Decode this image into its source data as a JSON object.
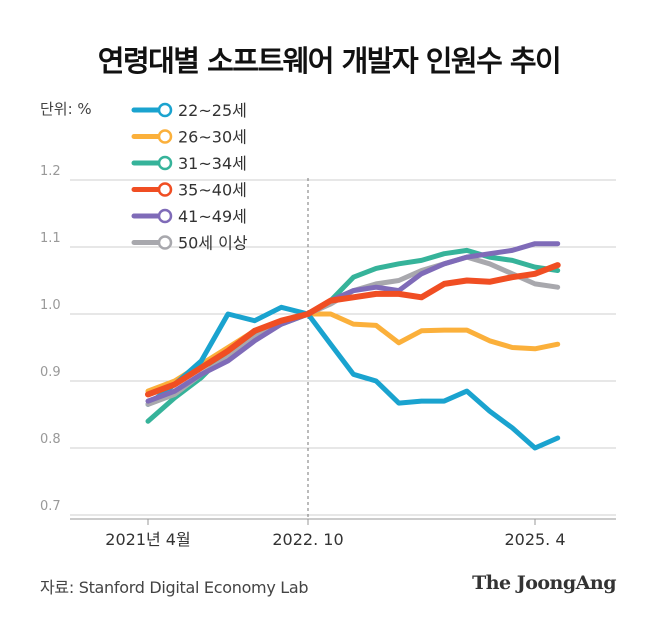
{
  "title": "연령대별 소프트웨어 개발자 인원수 추이",
  "unit_label": "단위: %",
  "source": "자료: Stanford Digital Economy Lab",
  "logo": "The JoongAng",
  "chart_data": {
    "type": "line",
    "title": "연령대별 소프트웨어 개발자 인원수 추이",
    "ylim": [
      0.7,
      1.2
    ],
    "yticks": [
      "0.7",
      "0.8",
      "0.9",
      "1.0",
      "1.1",
      "1.2"
    ],
    "xticks": [
      {
        "date": "2021-04",
        "label": "2021년 4월"
      },
      {
        "date": "2022-10",
        "label": "2022. 10"
      },
      {
        "date": "2025-04",
        "label": "2025. 4"
      }
    ],
    "reference_line": "2022-10",
    "grid": true,
    "legend_position": "top-left",
    "x": [
      "2021-04",
      "2021-07",
      "2021-10",
      "2022-01",
      "2022-04",
      "2022-07",
      "2022-10",
      "2023-01",
      "2023-04",
      "2023-07",
      "2023-10",
      "2024-01",
      "2024-04",
      "2024-07",
      "2024-10",
      "2025-01",
      "2025-04",
      "2025-07"
    ],
    "series": [
      {
        "name": "22~25세",
        "color": "#1aa3cf",
        "values": [
          0.865,
          0.895,
          0.93,
          1.0,
          0.99,
          1.01,
          1.0,
          0.955,
          0.91,
          0.9,
          0.867,
          0.87,
          0.87,
          0.885,
          0.855,
          0.83,
          0.8,
          0.815
        ]
      },
      {
        "name": "26~30세",
        "color": "#fbb03b",
        "values": [
          0.885,
          0.9,
          0.925,
          0.95,
          0.975,
          0.99,
          1.0,
          1.0,
          0.985,
          0.983,
          0.957,
          0.975,
          0.976,
          0.976,
          0.96,
          0.95,
          0.948,
          0.955
        ]
      },
      {
        "name": "31~34세",
        "color": "#36b39a",
        "values": [
          0.84,
          0.875,
          0.905,
          0.945,
          0.97,
          0.985,
          1.0,
          1.02,
          1.055,
          1.068,
          1.075,
          1.08,
          1.09,
          1.095,
          1.085,
          1.08,
          1.07,
          1.065
        ]
      },
      {
        "name": "35~40세",
        "color": "#f04e23",
        "values": [
          0.88,
          0.895,
          0.92,
          0.945,
          0.975,
          0.99,
          1.0,
          1.02,
          1.025,
          1.03,
          1.03,
          1.025,
          1.045,
          1.05,
          1.048,
          1.055,
          1.06,
          1.073
        ]
      },
      {
        "name": "41~49세",
        "color": "#7f6bb8",
        "values": [
          0.87,
          0.885,
          0.91,
          0.93,
          0.96,
          0.985,
          1.0,
          1.02,
          1.035,
          1.04,
          1.035,
          1.06,
          1.075,
          1.085,
          1.09,
          1.095,
          1.105,
          1.105
        ]
      },
      {
        "name": "50세 이상",
        "color": "#a8a8ad",
        "values": [
          0.865,
          0.88,
          0.91,
          0.935,
          0.965,
          0.99,
          1.0,
          1.015,
          1.035,
          1.045,
          1.05,
          1.065,
          1.075,
          1.085,
          1.075,
          1.06,
          1.045,
          1.04
        ]
      }
    ]
  }
}
